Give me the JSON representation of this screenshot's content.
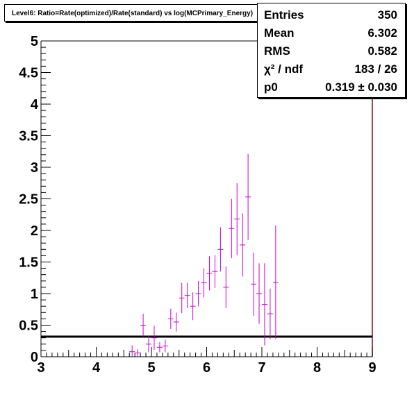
{
  "title": "Level6:  Ratio=Rate(optimized)/Rate(standard) vs log(MCPrimary_Energy)",
  "stats": [
    {
      "label": "Entries",
      "value": "350"
    },
    {
      "label": "Mean",
      "value": "6.302"
    },
    {
      "label": "RMS",
      "value": "0.582"
    },
    {
      "label": "χ² / ndf",
      "value": "183 / 26"
    },
    {
      "label": "p0",
      "value": "0.319 ± 0.030"
    }
  ],
  "colors": {
    "data": "#cc00cc",
    "fit": "#000000",
    "frame": "#000000",
    "frame_right": "#7a1010"
  },
  "chart_data": {
    "type": "scatter",
    "title": "Level6:  Ratio=Rate(optimized)/Rate(standard) vs log(MCPrimary_Energy)",
    "xlabel": "",
    "ylabel": "",
    "xlim": [
      3,
      9
    ],
    "ylim": [
      0,
      5
    ],
    "x_ticks": [
      "3",
      "4",
      "5",
      "6",
      "7",
      "8",
      "9"
    ],
    "y_ticks": [
      "0",
      "0.5",
      "1",
      "1.5",
      "2",
      "2.5",
      "3",
      "3.5",
      "4",
      "4.5",
      "5"
    ],
    "bin_width": 0.1,
    "grid": false,
    "legend": "none",
    "fit_value": 0.319,
    "points": [
      {
        "x": 4.65,
        "y": 0.08,
        "err": 0.1
      },
      {
        "x": 4.75,
        "y": 0.06,
        "err": 0.06
      },
      {
        "x": 4.85,
        "y": 0.5,
        "err": 0.18
      },
      {
        "x": 4.95,
        "y": 0.2,
        "err": 0.13
      },
      {
        "x": 5.05,
        "y": 0.3,
        "err": 0.19
      },
      {
        "x": 5.15,
        "y": 0.15,
        "err": 0.08
      },
      {
        "x": 5.25,
        "y": 0.17,
        "err": 0.1
      },
      {
        "x": 5.35,
        "y": 0.6,
        "err": 0.16
      },
      {
        "x": 5.45,
        "y": 0.55,
        "err": 0.15
      },
      {
        "x": 5.55,
        "y": 0.93,
        "err": 0.24
      },
      {
        "x": 5.65,
        "y": 0.97,
        "err": 0.2
      },
      {
        "x": 5.75,
        "y": 0.8,
        "err": 0.22
      },
      {
        "x": 5.85,
        "y": 1.0,
        "err": 0.2
      },
      {
        "x": 5.95,
        "y": 1.17,
        "err": 0.23
      },
      {
        "x": 6.05,
        "y": 1.32,
        "err": 0.27
      },
      {
        "x": 6.15,
        "y": 1.35,
        "err": 0.26
      },
      {
        "x": 6.25,
        "y": 1.7,
        "err": 0.35
      },
      {
        "x": 6.35,
        "y": 1.1,
        "err": 0.33
      },
      {
        "x": 6.45,
        "y": 2.03,
        "err": 0.47
      },
      {
        "x": 6.55,
        "y": 2.18,
        "err": 0.57
      },
      {
        "x": 6.65,
        "y": 1.77,
        "err": 0.5
      },
      {
        "x": 6.75,
        "y": 2.53,
        "err": 0.68
      },
      {
        "x": 6.85,
        "y": 1.15,
        "err": 0.5
      },
      {
        "x": 6.95,
        "y": 1.0,
        "err": 0.48
      },
      {
        "x": 7.05,
        "y": 0.83,
        "err": 0.65
      },
      {
        "x": 7.15,
        "y": 0.68,
        "err": 0.4
      },
      {
        "x": 7.25,
        "y": 1.18,
        "err": 0.9
      }
    ]
  }
}
